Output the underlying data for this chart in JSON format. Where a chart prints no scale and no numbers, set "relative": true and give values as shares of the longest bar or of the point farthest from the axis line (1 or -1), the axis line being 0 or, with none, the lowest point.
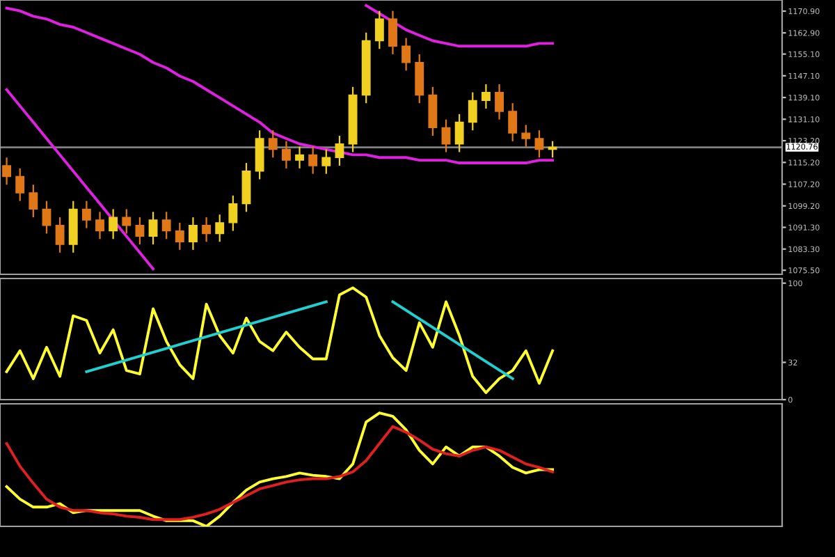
{
  "chart_data": [
    {
      "type": "candlestick",
      "categories": [
        null,
        null,
        null,
        null,
        null,
        null,
        null,
        null,
        null,
        null,
        null,
        null,
        null,
        null,
        null,
        null,
        null,
        null,
        null,
        null,
        null,
        null,
        null,
        null,
        null,
        null,
        null,
        null,
        null,
        null,
        null,
        null,
        null,
        null,
        null,
        null,
        null,
        null,
        null,
        null,
        null,
        null
      ],
      "ohlc": [
        [
          1114,
          1117,
          1107,
          1110
        ],
        [
          1110,
          1113,
          1101,
          1104
        ],
        [
          1104,
          1107,
          1095,
          1098
        ],
        [
          1098,
          1101,
          1089,
          1092
        ],
        [
          1092,
          1095,
          1082,
          1085
        ],
        [
          1085,
          1101,
          1082,
          1098
        ],
        [
          1098,
          1101,
          1091,
          1094
        ],
        [
          1094,
          1097,
          1087,
          1090
        ],
        [
          1090,
          1098,
          1087,
          1095
        ],
        [
          1095,
          1098,
          1089,
          1092
        ],
        [
          1092,
          1095,
          1085,
          1088
        ],
        [
          1088,
          1097,
          1085,
          1094
        ],
        [
          1094,
          1097,
          1087,
          1090
        ],
        [
          1090,
          1093,
          1083,
          1086
        ],
        [
          1086,
          1095,
          1083,
          1092
        ],
        [
          1092,
          1095,
          1086,
          1089
        ],
        [
          1089,
          1096,
          1086,
          1093
        ],
        [
          1093,
          1103,
          1090,
          1100
        ],
        [
          1100,
          1115,
          1097,
          1112
        ],
        [
          1112,
          1127,
          1109,
          1124
        ],
        [
          1124,
          1127,
          1117,
          1120
        ],
        [
          1120,
          1123,
          1113,
          1116
        ],
        [
          1116,
          1121,
          1113,
          1118
        ],
        [
          1118,
          1121,
          1111,
          1114
        ],
        [
          1114,
          1120,
          1111,
          1117
        ],
        [
          1117,
          1125,
          1114,
          1122
        ],
        [
          1122,
          1143,
          1119,
          1140
        ],
        [
          1140,
          1163,
          1137,
          1160
        ],
        [
          1160,
          1171,
          1157,
          1168
        ],
        [
          1168,
          1171,
          1155,
          1158
        ],
        [
          1158,
          1161,
          1149,
          1152
        ],
        [
          1152,
          1155,
          1137,
          1140
        ],
        [
          1140,
          1143,
          1125,
          1128
        ],
        [
          1128,
          1131,
          1119,
          1122
        ],
        [
          1122,
          1133,
          1119,
          1130
        ],
        [
          1130,
          1141,
          1127,
          1138
        ],
        [
          1138,
          1144,
          1135,
          1141
        ],
        [
          1141,
          1144,
          1131,
          1134
        ],
        [
          1134,
          1137,
          1123,
          1126
        ],
        [
          1126,
          1129,
          1121,
          1124
        ],
        [
          1124,
          1127,
          1117,
          1120
        ],
        [
          1120,
          1123,
          1117,
          1120.8
        ]
      ],
      "series": [
        {
          "type": "line",
          "color": "#e020e0",
          "values": [
            1172,
            1171,
            1169,
            1168,
            1166,
            1165,
            1163,
            1161,
            1159,
            1157,
            1155,
            1152,
            1150,
            1147,
            1145,
            1142,
            1139,
            1136,
            1133,
            1130,
            1126,
            1124,
            1122,
            1121,
            1120,
            1119,
            1118,
            1118,
            1117,
            1117,
            1117,
            1116,
            1116,
            1116,
            1115,
            1115,
            1115,
            1115,
            1115,
            1115,
            1116,
            1116
          ]
        },
        {
          "type": "line",
          "color": "#e020e0",
          "values": [
            1142,
            1136,
            1130,
            1124,
            1118,
            1112,
            1106,
            1100,
            1094,
            1088,
            1082,
            1076,
            null,
            null,
            null,
            null,
            null,
            null,
            null,
            null,
            null,
            null,
            null,
            null,
            null,
            null,
            null,
            null,
            null,
            null,
            null,
            null,
            null,
            null,
            null,
            null,
            null,
            null,
            null,
            null,
            null,
            null
          ]
        },
        {
          "type": "line",
          "color": "#e020e0",
          "values": [
            null,
            null,
            null,
            null,
            null,
            null,
            null,
            null,
            null,
            null,
            null,
            null,
            null,
            null,
            null,
            null,
            null,
            null,
            null,
            null,
            null,
            null,
            null,
            null,
            null,
            null,
            null,
            1173,
            1170,
            1167,
            1164,
            1162,
            1160,
            1159,
            1158,
            1158,
            1158,
            1158,
            1158,
            1158,
            1159,
            1159
          ]
        }
      ],
      "ylim": [
        1074,
        1175
      ],
      "yticks": [
        {
          "value": 1075.5,
          "label": "1075.50"
        },
        {
          "value": 1083.3,
          "label": "1083.30"
        },
        {
          "value": 1091.3,
          "label": "1091.30"
        },
        {
          "value": 1099.2,
          "label": "1099.20"
        },
        {
          "value": 1107.2,
          "label": "1107.20"
        },
        {
          "value": 1115.2,
          "label": "1115.20"
        },
        {
          "value": 1123.2,
          "label": "1123.20"
        },
        {
          "value": 1131.1,
          "label": "1131.10"
        },
        {
          "value": 1139.1,
          "label": "1139.10"
        },
        {
          "value": 1147.1,
          "label": "1147.10"
        },
        {
          "value": 1155.1,
          "label": "1155.10"
        },
        {
          "value": 1162.9,
          "label": "1162.90"
        },
        {
          "value": 1170.9,
          "label": "1170.90"
        }
      ],
      "ref_lines": [
        {
          "axis": "y",
          "value": 1120.76,
          "label": "1120.76",
          "color": "#808080"
        }
      ],
      "tick_labels": "y"
    },
    {
      "type": "line",
      "categories": [
        null,
        null,
        null,
        null,
        null,
        null,
        null,
        null,
        null,
        null,
        null,
        null,
        null,
        null,
        null,
        null,
        null,
        null,
        null,
        null,
        null,
        null,
        null,
        null,
        null,
        null,
        null,
        null,
        null,
        null,
        null,
        null,
        null,
        null,
        null,
        null,
        null,
        null,
        null,
        null,
        null,
        null
      ],
      "series": [
        {
          "color": "#ffff30",
          "values": [
            24,
            42,
            18,
            45,
            20,
            72,
            68,
            40,
            60,
            25,
            22,
            78,
            50,
            30,
            18,
            82,
            55,
            40,
            70,
            50,
            42,
            58,
            45,
            35,
            35,
            90,
            96,
            88,
            55,
            36,
            25,
            66,
            45,
            84,
            55,
            20,
            6,
            18,
            25,
            42,
            14,
            42
          ]
        },
        {
          "color": "#20d0d0",
          "values": [
            null,
            null,
            null,
            null,
            null,
            null,
            24,
            null,
            null,
            null,
            null,
            null,
            null,
            null,
            null,
            null,
            null,
            null,
            null,
            null,
            null,
            null,
            null,
            null,
            84,
            null,
            null,
            null,
            null,
            null,
            null,
            null,
            null,
            null,
            null,
            null,
            null,
            null,
            null,
            null,
            null,
            null
          ]
        },
        {
          "color": "#20d0d0",
          "values": [
            null,
            null,
            null,
            null,
            null,
            null,
            null,
            null,
            null,
            null,
            null,
            null,
            null,
            null,
            null,
            null,
            null,
            null,
            null,
            null,
            null,
            null,
            null,
            null,
            null,
            null,
            null,
            null,
            null,
            84,
            null,
            null,
            null,
            null,
            null,
            null,
            null,
            null,
            18,
            null,
            null,
            null
          ]
        }
      ],
      "ylim": [
        0,
        104
      ],
      "yticks": [
        0,
        32,
        100
      ],
      "tick_labels": "y"
    },
    {
      "type": "line",
      "relative": true,
      "categories": [
        null,
        null,
        null,
        null,
        null,
        null,
        null,
        null,
        null,
        null,
        null,
        null,
        null,
        null,
        null,
        null,
        null,
        null,
        null,
        null,
        null,
        null,
        null,
        null,
        null,
        null,
        null,
        null,
        null,
        null,
        null,
        null,
        null,
        null,
        null,
        null,
        null,
        null,
        null,
        null,
        null,
        null
      ],
      "series": [
        {
          "color": "#ffff30",
          "values": [
            0.35,
            0.24,
            0.17,
            0.17,
            0.2,
            0.12,
            0.14,
            0.14,
            0.14,
            0.14,
            0.14,
            0.09,
            0.05,
            0.05,
            0.05,
            0,
            0.09,
            0.21,
            0.32,
            0.39,
            0.42,
            0.44,
            0.47,
            0.45,
            0.44,
            0.42,
            0.55,
            0.92,
            1,
            0.97,
            0.85,
            0.67,
            0.55,
            0.7,
            0.62,
            0.7,
            0.7,
            0.62,
            0.52,
            0.47,
            0.5,
            0.5
          ]
        },
        {
          "color": "#e02020",
          "values": [
            0.73,
            0.53,
            0.38,
            0.24,
            0.17,
            0.14,
            0.14,
            0.12,
            0.11,
            0.09,
            0.08,
            0.06,
            0.06,
            0.06,
            0.08,
            0.11,
            0.15,
            0.21,
            0.27,
            0.33,
            0.36,
            0.39,
            0.41,
            0.42,
            0.42,
            0.44,
            0.48,
            0.58,
            0.73,
            0.88,
            0.83,
            0.76,
            0.68,
            0.64,
            0.62,
            0.67,
            0.7,
            0.67,
            0.61,
            0.55,
            0.52,
            0.48
          ]
        }
      ],
      "tick_labels": false
    }
  ]
}
